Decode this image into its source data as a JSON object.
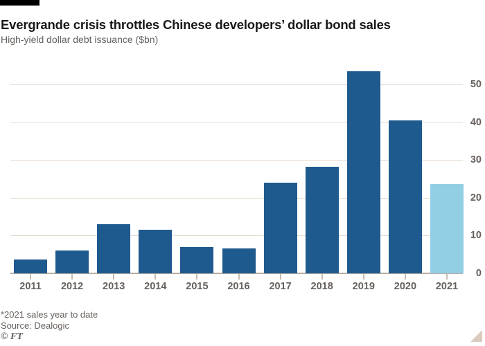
{
  "footer": {
    "note": "*2021 sales year to date",
    "source": "Source: Dealogic",
    "credit": "© FT"
  },
  "chart_data": {
    "type": "bar",
    "title": "Evergrande crisis throttles Chinese developers’ dollar bond sales",
    "subtitle": "High-yield dollar debt issuance ($bn)",
    "xlabel": "",
    "ylabel": "",
    "categories": [
      "2011",
      "2012",
      "2013",
      "2014",
      "2015",
      "2016",
      "2017",
      "2018",
      "2019",
      "2020",
      "2021"
    ],
    "values": [
      3.7,
      6.1,
      13.0,
      11.6,
      7.0,
      6.6,
      24.1,
      28.2,
      53.6,
      40.5,
      23.7
    ],
    "highlight_category": "2021",
    "highlight_note": "2021 is year-to-date, shown in light blue",
    "yticks": [
      0,
      10,
      20,
      30,
      40,
      50
    ],
    "ylim": [
      0,
      55
    ],
    "ytick_side": "right",
    "grid": "horizontal",
    "legend": "none",
    "colors": {
      "bar": "#1f5a8e",
      "bar_highlight": "#92cee4",
      "gridline": "#e5dbcf",
      "baseline": "#b7ada2",
      "tick": "#c6bcb1",
      "text_primary": "#1a1817",
      "text_secondary": "#66605c",
      "top_rule": "#000000"
    }
  }
}
